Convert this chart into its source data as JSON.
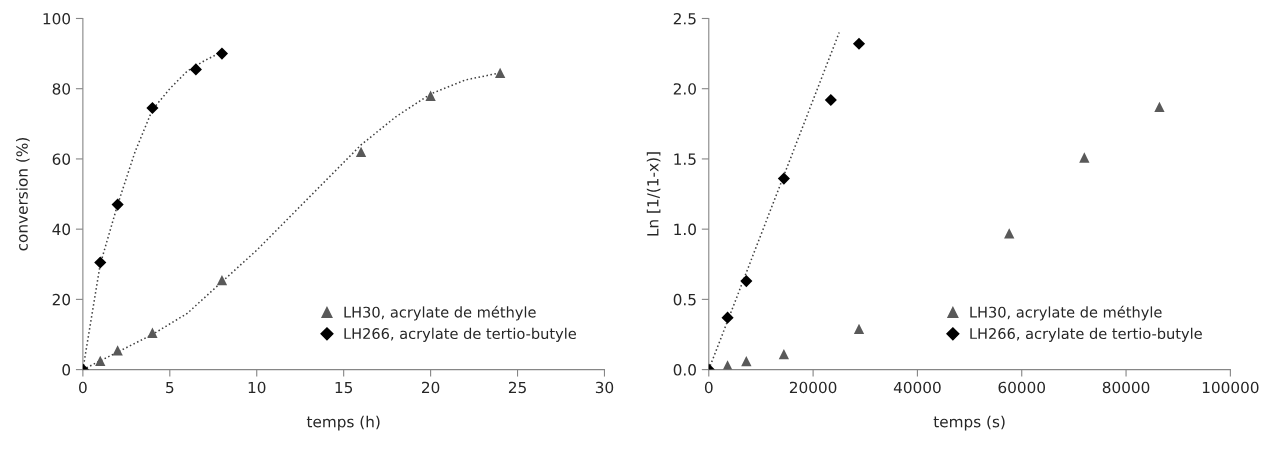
{
  "chart_data": [
    {
      "type": "scatter",
      "xlabel": "temps (h)",
      "ylabel": "conversion (%)",
      "xlim": [
        0,
        30
      ],
      "ylim": [
        0,
        100
      ],
      "xticks": [
        0,
        5,
        10,
        15,
        20,
        25,
        30
      ],
      "yticks": [
        0,
        20,
        40,
        60,
        80,
        100
      ],
      "grid": false,
      "legend": "bottom right",
      "series": [
        {
          "type": "line",
          "color": "#404040",
          "line_style": "dotted",
          "marker": "none",
          "x": [
            0,
            1,
            2,
            3,
            4,
            5,
            6,
            7,
            8
          ],
          "values": [
            0,
            30,
            47,
            62,
            74,
            80,
            85,
            88,
            90.5
          ]
        },
        {
          "type": "line",
          "color": "#404040",
          "line_style": "dotted",
          "marker": "none",
          "x": [
            0,
            2,
            4,
            6,
            8,
            10,
            12,
            14,
            16,
            18,
            20,
            22,
            24
          ],
          "values": [
            0,
            5,
            10,
            16,
            25,
            34,
            44,
            54,
            64,
            72,
            78.5,
            82.5,
            84.5
          ]
        },
        {
          "name": "LH30, acrylate de méthyle",
          "color": "#595959",
          "marker": "triangle",
          "x": [
            0,
            1,
            2,
            4,
            8,
            16,
            20,
            24
          ],
          "values": [
            0,
            2.5,
            5.5,
            10.5,
            25.5,
            62,
            78,
            84.5
          ]
        },
        {
          "name": "LH266, acrylate de tertio-butyle",
          "color": "#000000",
          "marker": "diamond",
          "x": [
            0,
            1,
            2,
            4,
            6.5,
            8
          ],
          "values": [
            0,
            30.5,
            47,
            74.5,
            85.5,
            90
          ]
        }
      ]
    },
    {
      "type": "scatter",
      "xlabel": "temps (s)",
      "ylabel": "Ln [1/(1-x)]",
      "xlim": [
        0,
        100000
      ],
      "ylim": [
        0,
        2.5
      ],
      "xticks": [
        0,
        20000,
        40000,
        60000,
        80000,
        100000
      ],
      "yticks": [
        {
          "value": 0,
          "label": "0.0"
        },
        {
          "value": 0.5,
          "label": "0.5"
        },
        {
          "value": 1,
          "label": "1.0"
        },
        {
          "value": 1.5,
          "label": "1.5"
        },
        {
          "value": 2,
          "label": "2.0"
        },
        {
          "value": 2.5,
          "label": "2.5"
        }
      ],
      "grid": false,
      "legend": "bottom right",
      "series": [
        {
          "type": "line",
          "color": "#404040",
          "line_style": "dotted",
          "marker": "none",
          "x": [
            0,
            25000
          ],
          "values": [
            0,
            2.4
          ]
        },
        {
          "name": "LH30, acrylate de méthyle",
          "color": "#595959",
          "marker": "triangle",
          "x": [
            0,
            3600,
            7200,
            14400,
            28800,
            57600,
            72000,
            86400
          ],
          "values": [
            0,
            0.03,
            0.06,
            0.11,
            0.29,
            0.97,
            1.51,
            1.87
          ]
        },
        {
          "name": "LH266, acrylate de tertio-butyle",
          "color": "#000000",
          "marker": "diamond",
          "x": [
            0,
            3600,
            7200,
            14400,
            23400,
            28800
          ],
          "values": [
            0,
            0.37,
            0.63,
            1.36,
            1.92,
            2.32
          ]
        }
      ]
    }
  ]
}
